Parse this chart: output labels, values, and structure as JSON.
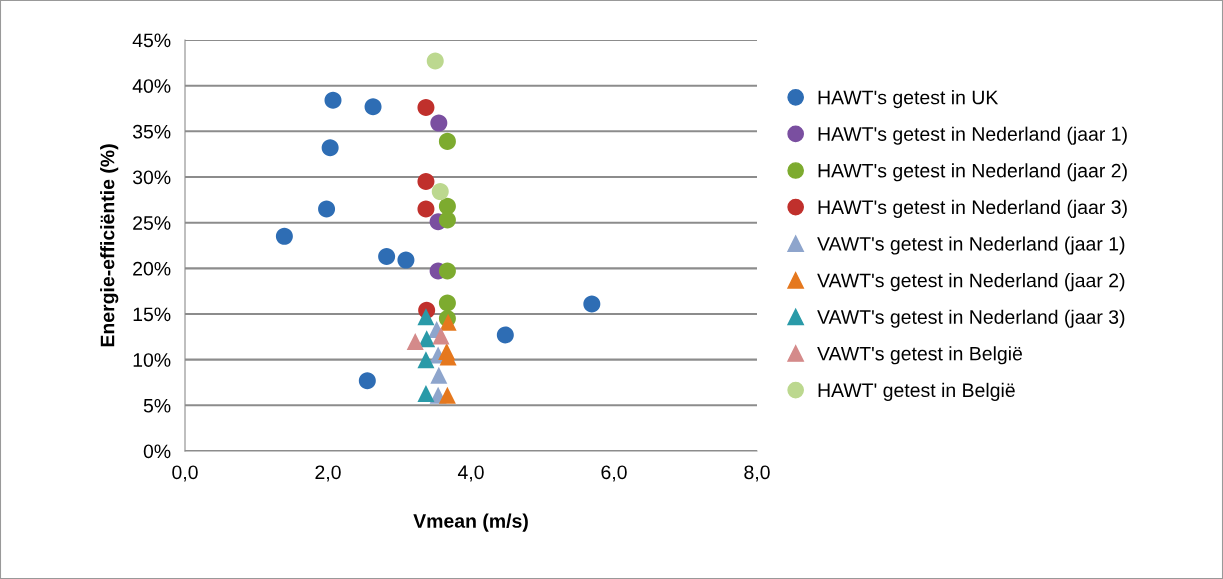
{
  "chart_data": {
    "type": "scatter",
    "xlabel": "Vmean (m/s)",
    "ylabel": "Energie-efficiëntie (%)",
    "xlim": [
      0,
      8
    ],
    "xticks": [
      {
        "value": 0,
        "label": "0,0"
      },
      {
        "value": 2,
        "label": "2,0"
      },
      {
        "value": 4,
        "label": "4,0"
      },
      {
        "value": 6,
        "label": "6,0"
      },
      {
        "value": 8,
        "label": "8,0"
      }
    ],
    "ylim": [
      0,
      45
    ],
    "yticks": [
      {
        "value": 0,
        "label": "0%"
      },
      {
        "value": 5,
        "label": "5%"
      },
      {
        "value": 10,
        "label": "10%"
      },
      {
        "value": 15,
        "label": "15%"
      },
      {
        "value": 20,
        "label": "20%"
      },
      {
        "value": 25,
        "label": "25%"
      },
      {
        "value": 30,
        "label": "30%"
      },
      {
        "value": 35,
        "label": "35%"
      },
      {
        "value": 40,
        "label": "40%"
      },
      {
        "value": 45,
        "label": "45%"
      }
    ],
    "grid": "y",
    "legend": "right",
    "series": [
      {
        "name": "HAWT's getest in UK",
        "color": "#2e6db4",
        "marker": "circle",
        "x": [
          2.07,
          2.63,
          2.03,
          1.98,
          1.39,
          2.55,
          2.82,
          3.09,
          5.69,
          4.48
        ],
        "values": [
          38.4,
          37.7,
          33.2,
          26.5,
          23.5,
          7.7,
          21.3,
          20.9,
          16.1,
          12.7
        ]
      },
      {
        "name": "HAWT's getest in Nederland (jaar 1)",
        "color": "#7a4fa0",
        "marker": "circle",
        "x": [
          3.55,
          3.54,
          3.54
        ],
        "values": [
          35.9,
          25.1,
          19.7
        ]
      },
      {
        "name": "HAWT's getest in Nederland (jaar 2)",
        "color": "#7dab2f",
        "marker": "circle",
        "x": [
          3.67,
          3.67,
          3.67,
          3.67,
          3.67,
          3.67
        ],
        "values": [
          33.9,
          26.8,
          25.3,
          19.7,
          16.2,
          14.5
        ]
      },
      {
        "name": "HAWT's getest in Nederland (jaar 3)",
        "color": "#c0302c",
        "marker": "circle",
        "x": [
          3.37,
          3.37,
          3.37,
          3.38
        ],
        "values": [
          37.6,
          29.5,
          26.5,
          15.4
        ]
      },
      {
        "name": "VAWT's getest in Nederland (jaar 1)",
        "color": "#8ea5cc",
        "marker": "triangle",
        "x": [
          3.52,
          3.54,
          3.55,
          3.54
        ],
        "values": [
          13.3,
          10.5,
          8.3,
          6.1
        ]
      },
      {
        "name": "VAWT's getest in Nederland (jaar 2)",
        "color": "#e5781e",
        "marker": "triangle",
        "x": [
          3.68,
          3.66,
          3.68,
          3.67
        ],
        "values": [
          14.1,
          10.9,
          10.3,
          6.1
        ]
      },
      {
        "name": "VAWT's getest in Nederland (jaar 3)",
        "color": "#2a9aa8",
        "marker": "triangle",
        "x": [
          3.37,
          3.38,
          3.37,
          3.37
        ],
        "values": [
          14.7,
          12.3,
          10.0,
          6.3
        ]
      },
      {
        "name": "VAWT's getest in België",
        "color": "#d48a8a",
        "marker": "triangle",
        "x": [
          3.58,
          3.22
        ],
        "values": [
          12.6,
          12.0
        ]
      },
      {
        "name": "HAWT' getest in België",
        "color": "#bcd88f",
        "marker": "circle",
        "x": [
          3.5,
          3.57
        ],
        "values": [
          42.7,
          28.4
        ]
      }
    ]
  }
}
